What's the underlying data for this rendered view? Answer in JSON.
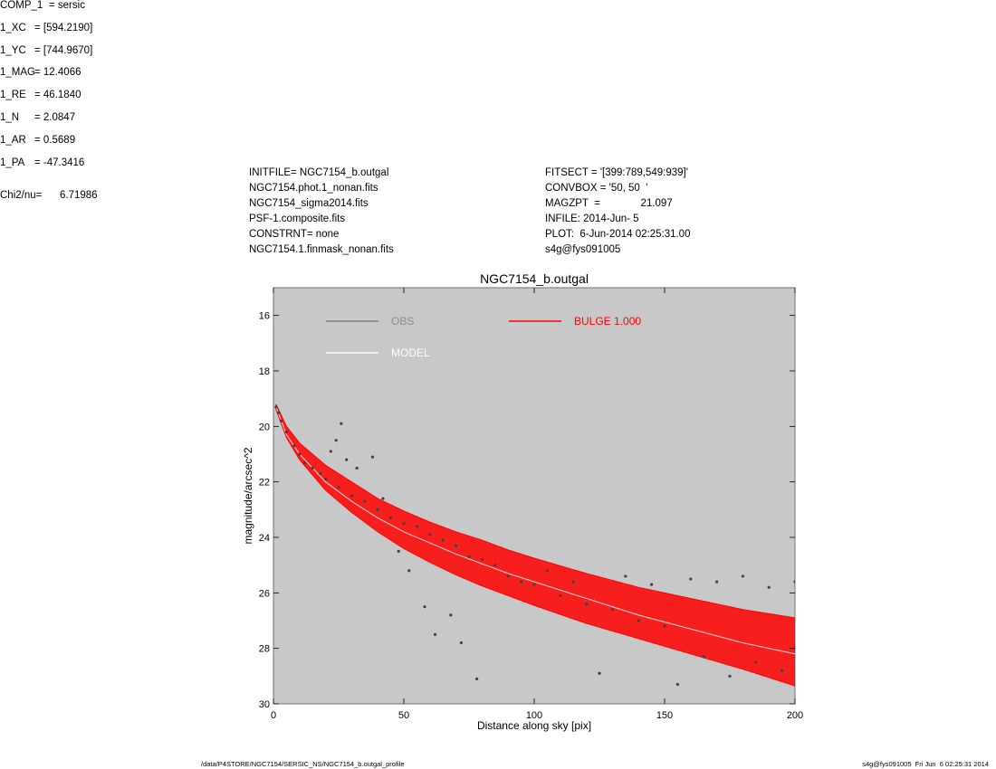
{
  "header": {
    "left": [
      "INITFILE= NGC7154_b.outgal",
      "NGC7154.phot.1_nonan.fits",
      "NGC7154_sigma2014.fits",
      "PSF-1.composite.fits",
      "CONSTRNT= none",
      "NGC7154.1.finmask_nonan.fits"
    ],
    "middle": [
      "FITSECT = '[399:789,549:939]'",
      "CONVBOX = '50, 50  '",
      "MAGZPT  =              21.097",
      "INFILE: 2014-Jun- 5",
      "PLOT:  6-Jun-2014 02:25:31.00",
      "s4g@fys091005"
    ],
    "params": [
      {
        "key": "COMP_1",
        "value": "= sersic"
      },
      {
        "key": "1_XC",
        "value": "= [594.2190]"
      },
      {
        "key": "1_YC",
        "value": "= [744.9670]"
      },
      {
        "key": "1_MAG",
        "value": "= 12.4066"
      },
      {
        "key": "1_RE",
        "value": "= 46.1840"
      },
      {
        "key": "1_N",
        "value": "= 2.0847"
      },
      {
        "key": "1_AR",
        "value": "= 0.5689"
      },
      {
        "key": "1_PA",
        "value": "= -47.3416"
      }
    ],
    "chi2": {
      "key": "Chi2/nu=",
      "value": "6.71986"
    }
  },
  "footer": {
    "left": "/data/P4STORE/NGC7154/SERSIC_NS/NGC7154_b.outgal_profile",
    "right": "s4g@fys091005  Fri Jun  6 02:25:31 2014"
  },
  "chart_data": {
    "type": "scatter",
    "title": "NGC7154_b.outgal",
    "xlabel": "Distance along sky [pix]",
    "ylabel": "magnitude/arcsec^2",
    "xlim": [
      0,
      200
    ],
    "ylim": [
      30,
      15
    ],
    "y_inverted": true,
    "xticks": [
      0,
      50,
      100,
      150,
      200
    ],
    "yticks": [
      16,
      18,
      20,
      22,
      24,
      26,
      28,
      30
    ],
    "background": "#c8c8c8",
    "grid": false,
    "legend": [
      {
        "label": "OBS",
        "color": "#808080"
      },
      {
        "label": "MODEL",
        "color": "#ffffff"
      },
      {
        "label": "BULGE  1.000",
        "color": "#ff0000"
      }
    ],
    "series": [
      {
        "name": "OBS",
        "color": "#404040",
        "points": [
          [
            1,
            19.3
          ],
          [
            2,
            19.5
          ],
          [
            3,
            19.8
          ],
          [
            5,
            20.2
          ],
          [
            8,
            20.7
          ],
          [
            10,
            21.0
          ],
          [
            12,
            21.3
          ],
          [
            15,
            21.5
          ],
          [
            18,
            21.7
          ],
          [
            20,
            21.9
          ],
          [
            22,
            20.9
          ],
          [
            24,
            20.5
          ],
          [
            25,
            22.2
          ],
          [
            26,
            19.9
          ],
          [
            28,
            21.2
          ],
          [
            30,
            22.5
          ],
          [
            32,
            21.5
          ],
          [
            35,
            22.7
          ],
          [
            38,
            21.1
          ],
          [
            40,
            23.0
          ],
          [
            42,
            22.6
          ],
          [
            45,
            23.3
          ],
          [
            48,
            24.5
          ],
          [
            50,
            23.5
          ],
          [
            52,
            25.2
          ],
          [
            55,
            23.6
          ],
          [
            58,
            26.5
          ],
          [
            60,
            23.9
          ],
          [
            62,
            27.5
          ],
          [
            65,
            24.1
          ],
          [
            68,
            26.8
          ],
          [
            70,
            24.3
          ],
          [
            72,
            27.8
          ],
          [
            75,
            24.7
          ],
          [
            78,
            29.1
          ],
          [
            80,
            24.8
          ],
          [
            85,
            25.0
          ],
          [
            90,
            25.4
          ],
          [
            95,
            25.6
          ],
          [
            100,
            25.7
          ],
          [
            105,
            25.2
          ],
          [
            110,
            26.1
          ],
          [
            115,
            25.6
          ],
          [
            120,
            26.4
          ],
          [
            125,
            28.9
          ],
          [
            130,
            26.6
          ],
          [
            135,
            25.4
          ],
          [
            140,
            27.0
          ],
          [
            145,
            25.7
          ],
          [
            150,
            27.2
          ],
          [
            155,
            29.3
          ],
          [
            160,
            25.5
          ],
          [
            165,
            28.3
          ],
          [
            170,
            25.6
          ],
          [
            175,
            29.0
          ],
          [
            180,
            25.4
          ],
          [
            185,
            28.5
          ],
          [
            190,
            25.8
          ],
          [
            195,
            28.8
          ],
          [
            200,
            25.6
          ]
        ]
      },
      {
        "name": "MODEL",
        "color": "#ffffff",
        "points": [
          [
            1,
            19.3
          ],
          [
            5,
            20.3
          ],
          [
            10,
            21.0
          ],
          [
            20,
            22.0
          ],
          [
            30,
            22.7
          ],
          [
            40,
            23.3
          ],
          [
            50,
            23.8
          ],
          [
            60,
            24.2
          ],
          [
            70,
            24.6
          ],
          [
            80,
            24.95
          ],
          [
            90,
            25.3
          ],
          [
            100,
            25.6
          ],
          [
            120,
            26.2
          ],
          [
            140,
            26.8
          ],
          [
            160,
            27.3
          ],
          [
            180,
            27.8
          ],
          [
            200,
            28.2
          ]
        ]
      },
      {
        "name": "BULGE  1.000",
        "color": "#ff0000",
        "upper": [
          [
            1,
            19.2
          ],
          [
            5,
            20.0
          ],
          [
            10,
            20.6
          ],
          [
            20,
            21.4
          ],
          [
            30,
            22.0
          ],
          [
            40,
            22.6
          ],
          [
            50,
            23.05
          ],
          [
            60,
            23.45
          ],
          [
            70,
            23.8
          ],
          [
            80,
            24.1
          ],
          [
            90,
            24.45
          ],
          [
            100,
            24.75
          ],
          [
            120,
            25.3
          ],
          [
            140,
            25.8
          ],
          [
            160,
            26.2
          ],
          [
            180,
            26.6
          ],
          [
            200,
            26.9
          ]
        ],
        "lower": [
          [
            1,
            19.4
          ],
          [
            5,
            20.4
          ],
          [
            10,
            21.2
          ],
          [
            20,
            22.3
          ],
          [
            30,
            23.1
          ],
          [
            40,
            23.8
          ],
          [
            50,
            24.4
          ],
          [
            60,
            24.9
          ],
          [
            70,
            25.35
          ],
          [
            80,
            25.75
          ],
          [
            90,
            26.1
          ],
          [
            100,
            26.45
          ],
          [
            120,
            27.1
          ],
          [
            140,
            27.65
          ],
          [
            160,
            28.2
          ],
          [
            180,
            28.75
          ],
          [
            200,
            29.35
          ]
        ]
      }
    ]
  }
}
